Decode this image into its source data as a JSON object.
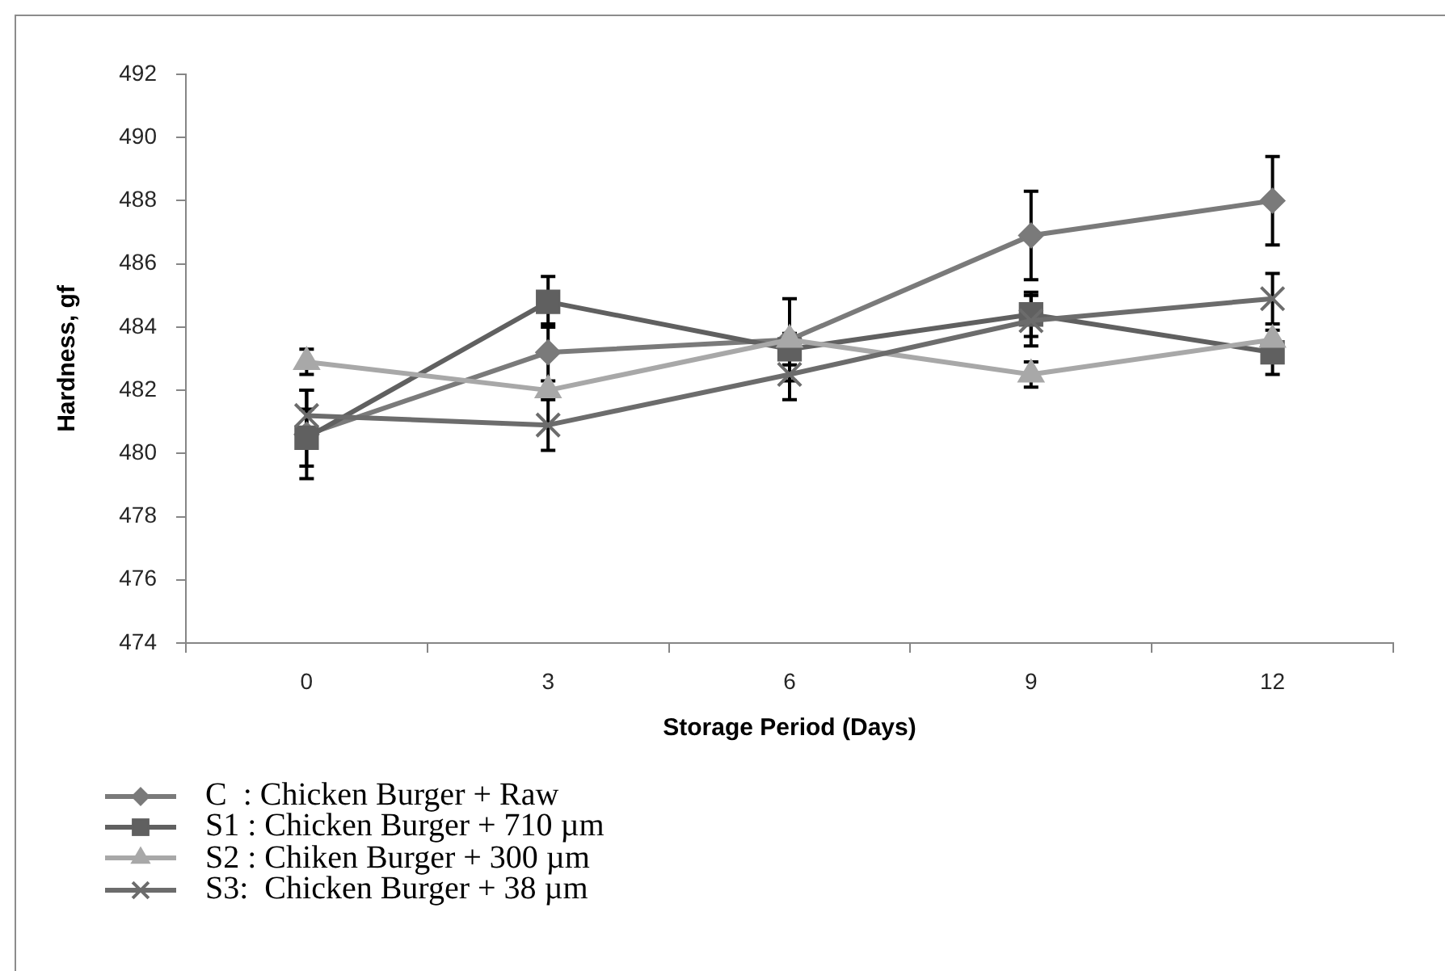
{
  "chart_data": {
    "type": "line",
    "xlabel": "Storage Period (Days)",
    "ylabel": "Hardness, gf",
    "categories": [
      "0",
      "3",
      "6",
      "9",
      "12"
    ],
    "ylim": [
      474,
      492
    ],
    "yticks": [
      474,
      476,
      478,
      480,
      482,
      484,
      486,
      488,
      490,
      492
    ],
    "legend": "bottom left",
    "series": [
      {
        "name": "C  : Chicken Burger + Raw",
        "color": "#7a7a7a",
        "marker": "diamond",
        "values": [
          480.6,
          483.2,
          483.6,
          486.9,
          488.0
        ],
        "errors": [
          1.4,
          0.9,
          1.3,
          1.4,
          1.4
        ]
      },
      {
        "name": "S1 : Chicken Burger + 710 µm",
        "color": "#606060",
        "marker": "square",
        "values": [
          480.5,
          484.8,
          483.3,
          484.4,
          483.2
        ],
        "errors": [
          0.9,
          0.8,
          0.5,
          0.7,
          0.7
        ]
      },
      {
        "name": "S2 : Chiken Burger + 300 µm",
        "color": "#a8a8a8",
        "marker": "triangle",
        "values": [
          482.9,
          482.0,
          483.6,
          482.5,
          483.6
        ],
        "errors": [
          0.4,
          null,
          null,
          0.4,
          null
        ]
      },
      {
        "name": "S3:  Chicken Burger + 38 µm",
        "color": "#6c6c6c",
        "marker": "cross",
        "values": [
          481.2,
          480.9,
          482.5,
          484.2,
          484.9
        ],
        "errors": [
          0.8,
          0.8,
          0.8,
          0.8,
          0.8
        ]
      }
    ]
  }
}
